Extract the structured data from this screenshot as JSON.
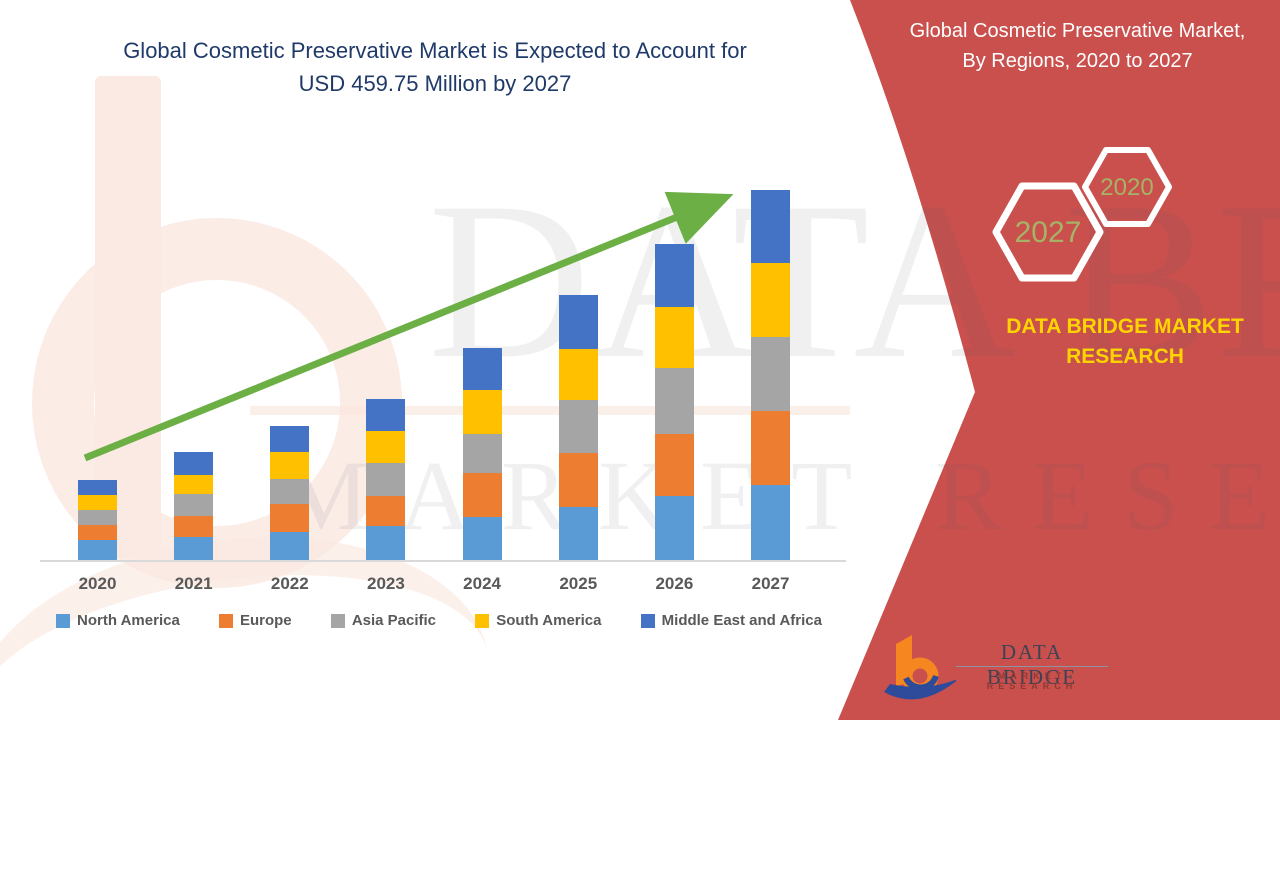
{
  "main_title": {
    "line1": "Global Cosmetic Preservative Market is Expected to Account for",
    "line2": "USD 459.75 Million by 2027"
  },
  "side_panel": {
    "bg_color": "#c9504d",
    "title_line1": "Global Cosmetic Preservative Market,",
    "title_line2": "By Regions, 2020 to 2027",
    "hexagon_large_label": "2027",
    "hexagon_small_label": "2020",
    "hexagon_label_color": "#a6b366",
    "brand_line1": "DATA BRIDGE MARKET",
    "brand_line2": "RESEARCH",
    "brand_color": "#ffd400"
  },
  "watermark": {
    "line1": "DATA BRIDGE",
    "line2": "MARKET RESEARCH"
  },
  "logo": {
    "name": "DATA BRIDGE",
    "subtitle": "MARKET RESEARCH",
    "b_color": "#f6861f",
    "swoosh_color": "#2d4b9a"
  },
  "chart_data": {
    "type": "bar",
    "stacked": true,
    "title": "Global Cosmetic Preservative Market is Expected to Account for USD 459.75 Million by 2027",
    "unit": "USD Million",
    "categories": [
      "2020",
      "2021",
      "2022",
      "2023",
      "2024",
      "2025",
      "2026",
      "2027"
    ],
    "series": [
      {
        "name": "North America",
        "color": "#5b9bd5",
        "values": [
          25,
          29,
          35,
          42,
          53,
          66,
          80,
          92.6
        ]
      },
      {
        "name": "Europe",
        "color": "#ed7d31",
        "values": [
          18,
          26,
          34,
          37,
          55,
          67,
          77,
          92.4
        ]
      },
      {
        "name": "Asia Pacific",
        "color": "#a5a5a5",
        "values": [
          19,
          27,
          32,
          41,
          49,
          66,
          81,
          91.9
        ]
      },
      {
        "name": "South America",
        "color": "#ffc000",
        "values": [
          19,
          24,
          33,
          40,
          54,
          63,
          77,
          92.55
        ]
      },
      {
        "name": "Middle East and Africa",
        "color": "#4472c4",
        "values": [
          19,
          28,
          33,
          40,
          52,
          67,
          78,
          90.3
        ]
      }
    ],
    "totals": [
      100,
      134,
      167,
      200,
      263,
      330,
      393,
      459.75
    ],
    "axis_range": [
      0,
      459.75
    ],
    "gridlines": false,
    "y_axis_visible": false,
    "legend_position": "bottom",
    "trend_arrow": true,
    "trend_arrow_color": "#6baf45",
    "label_color": "#595959"
  }
}
